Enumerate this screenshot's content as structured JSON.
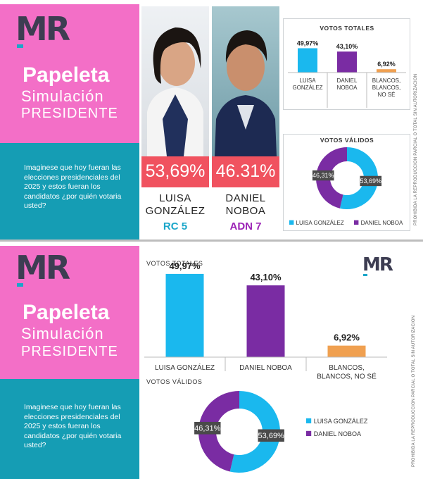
{
  "brand": {
    "logo_text": "MR"
  },
  "left_panel": {
    "title": "Papeleta",
    "subtitle": "Simulación",
    "office": "PRESIDENTE",
    "question": "Imaginese que hoy fueran las elecciones presidenciales del 2025 y estos fueran los candidatos  ¿por quién votaria usted?"
  },
  "candidates": [
    {
      "pct": "53,69%",
      "name_line1": "LUISA",
      "name_line2": "GONZÁLEZ",
      "party": "RC 5",
      "party_color": "#1aa6c9"
    },
    {
      "pct": "46.31%",
      "name_line1": "DANIEL",
      "name_line2": "NOBOA",
      "party": "ADN 7",
      "party_color": "#9b22b5"
    }
  ],
  "disclaimer": "PROHIBIDA LA REPRODUCCIÓN PARCIAL O TOTAL SIN AUTORIZACIÓN",
  "colors": {
    "gonzalez": "#1ab8ee",
    "noboa": "#7a2ca3",
    "blancos": "#f0a050",
    "pink": "#f36fc7",
    "teal": "#159db4",
    "pct_box": "#f0525f"
  },
  "chart_data": [
    {
      "type": "bar",
      "title": "VOTOS TOTALES",
      "categories": [
        "LUISA GONZÁLEZ",
        "DANIEL NOBOA",
        "BLANCOS, BLANCOS, NO SÉ"
      ],
      "values": [
        49.97,
        43.1,
        6.92
      ],
      "value_labels": [
        "49,97%",
        "43,10%",
        "6,92%"
      ],
      "ylim": [
        0,
        55
      ]
    },
    {
      "type": "pie",
      "title": "VOTOS VÁLIDOS",
      "categories": [
        "LUISA GONZÁLEZ",
        "DANIEL NOBOA"
      ],
      "values": [
        53.69,
        46.31
      ],
      "value_labels": [
        "53,69%",
        "46,31%"
      ],
      "legend": "bottom"
    },
    {
      "type": "bar",
      "title": "VOTOS TOTALES",
      "categories": [
        "LUISA GONZÁLEZ",
        "DANIEL NOBOA",
        "BLANCOS, BLANCOS, NO SÉ"
      ],
      "values": [
        49.97,
        43.1,
        6.92
      ],
      "value_labels": [
        "49,97%",
        "43,10%",
        "6,92%"
      ],
      "ylim": [
        0,
        55
      ]
    },
    {
      "type": "pie",
      "title": "VOTOS VÁLIDOS",
      "categories": [
        "LUISA GONZÁLEZ",
        "DANIEL NOBOA"
      ],
      "values": [
        53.69,
        46.31
      ],
      "value_labels": [
        "53,69%",
        "46,31%"
      ],
      "legend": "right"
    }
  ]
}
